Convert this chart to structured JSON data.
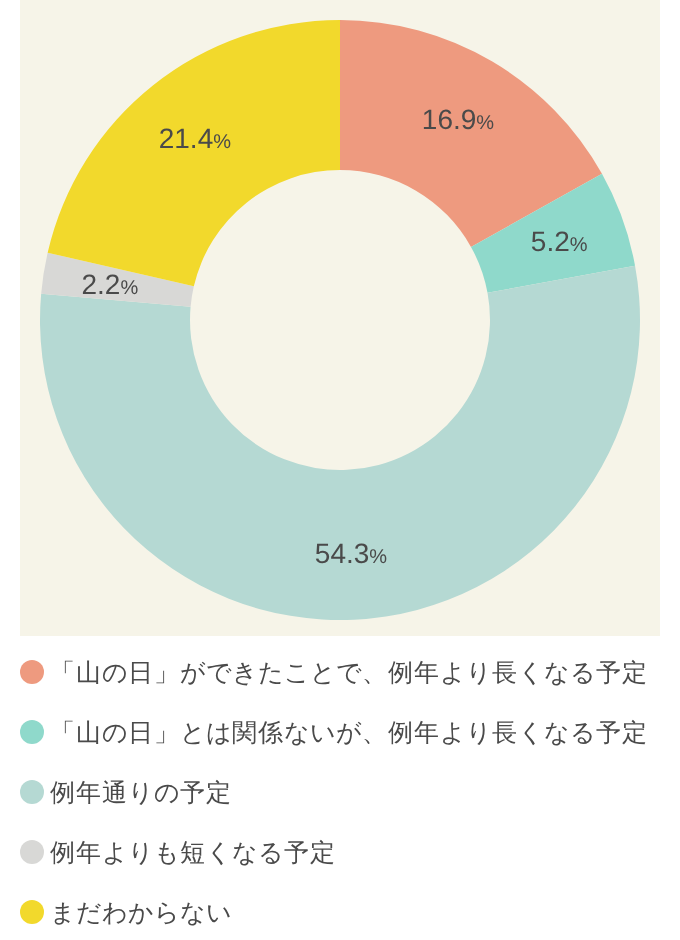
{
  "chart_data": {
    "type": "donut",
    "categories": [
      "「山の日」ができたことで、例年より長くなる予定",
      "「山の日」とは関係ないが、例年より長くなる予定",
      "例年通りの予定",
      "例年よりも短くなる予定",
      "まだわからない"
    ],
    "values": [
      16.9,
      5.2,
      54.3,
      2.2,
      21.4
    ],
    "colors": [
      "#ee9a7f",
      "#8fd9cb",
      "#b5d9d3",
      "#d8d8d6",
      "#f2d92c"
    ],
    "value_labels": [
      "16.9%",
      "5.2%",
      "54.3%",
      "2.2%",
      "21.4%"
    ],
    "legend": "bottom"
  }
}
